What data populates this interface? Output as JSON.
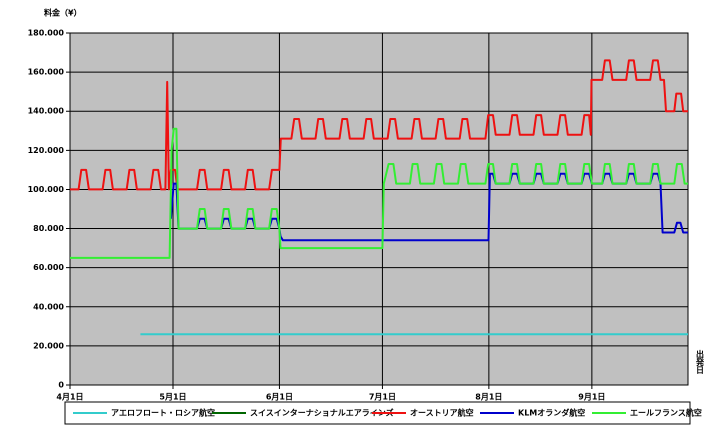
{
  "chart_data": {
    "type": "line",
    "y_label": "料金（¥）",
    "x_label": "出発日",
    "xlim": [
      0,
      180
    ],
    "xticks": [
      {
        "value": 0,
        "label": "4月1日"
      },
      {
        "value": 30,
        "label": "5月1日"
      },
      {
        "value": 61,
        "label": "6月1日"
      },
      {
        "value": 91,
        "label": "7月1日"
      },
      {
        "value": 122,
        "label": "8月1日"
      },
      {
        "value": 152,
        "label": "9月1日"
      }
    ],
    "ylim": [
      0,
      180000
    ],
    "yticks": [
      0,
      {
        "value": 20000,
        "label": "20.000"
      },
      {
        "value": 40000,
        "label": "40.000"
      },
      {
        "value": 60000,
        "label": "60.000"
      },
      {
        "value": 80000,
        "label": "80.000"
      },
      {
        "value": 100000,
        "label": "100.000"
      },
      {
        "value": 120000,
        "label": "120.000"
      },
      {
        "value": 140000,
        "label": "140.000"
      },
      {
        "value": 160000,
        "label": "160.000"
      },
      {
        "value": 180000,
        "label": "180.000"
      }
    ],
    "grid": true,
    "series": [
      {
        "name": "アエロフロート・ロシア航空",
        "color": "#33cccc",
        "x": [
          20.5,
          180
        ],
        "values": [
          26000,
          26000
        ]
      },
      {
        "name": "スイスインターナショナルエアラインズ",
        "color": "#006600",
        "x": [],
        "values": []
      },
      {
        "name": "オーストリア航空",
        "color": "#ee1111",
        "x": [
          0,
          2.5,
          3.3,
          4.7,
          5.5,
          9.5,
          10.3,
          11.7,
          12.5,
          16.5,
          17.3,
          18.7,
          19.5,
          23.5,
          24.3,
          25.7,
          26.5,
          27.8,
          28.3,
          28.8,
          29.4,
          30.6,
          31.3,
          37,
          37.8,
          39.2,
          40,
          44,
          44.8,
          46.2,
          47,
          51,
          51.8,
          53.2,
          54,
          58,
          58.8,
          61,
          61.4,
          64.5,
          65.3,
          66.7,
          67.5,
          71.5,
          72.3,
          73.7,
          74.5,
          78.5,
          79.3,
          80.7,
          81.5,
          85.5,
          86.3,
          87.7,
          88.5,
          92.5,
          93.3,
          94.7,
          95.5,
          99.5,
          100.3,
          101.7,
          102.5,
          106.5,
          107.3,
          108.7,
          109.5,
          113.5,
          114.3,
          115.7,
          116.5,
          121,
          121.8,
          123.2,
          124,
          128,
          128.8,
          130.2,
          131,
          135,
          135.8,
          137.2,
          138,
          142,
          142.8,
          144.2,
          145,
          149,
          149.8,
          151.2,
          151.7,
          151.9,
          155,
          155.8,
          157.2,
          158,
          162,
          162.8,
          164.2,
          165,
          169,
          169.8,
          171.2,
          172,
          173,
          173.6,
          176,
          176.6,
          178,
          178.6,
          180
        ],
        "values": [
          100000,
          100000,
          110000,
          110000,
          100000,
          100000,
          110000,
          110000,
          100000,
          100000,
          110000,
          110000,
          100000,
          100000,
          110000,
          110000,
          100000,
          100000,
          155000,
          100000,
          110000,
          110000,
          100000,
          100000,
          110000,
          110000,
          100000,
          100000,
          110000,
          110000,
          100000,
          100000,
          110000,
          110000,
          100000,
          100000,
          110000,
          110000,
          126000,
          126000,
          136000,
          136000,
          126000,
          126000,
          136000,
          136000,
          126000,
          126000,
          136000,
          136000,
          126000,
          126000,
          136000,
          136000,
          126000,
          126000,
          136000,
          136000,
          126000,
          126000,
          136000,
          136000,
          126000,
          126000,
          136000,
          136000,
          126000,
          126000,
          136000,
          136000,
          126000,
          126000,
          138000,
          138000,
          128000,
          128000,
          138000,
          138000,
          128000,
          128000,
          138000,
          138000,
          128000,
          128000,
          138000,
          138000,
          128000,
          128000,
          138000,
          138000,
          128000,
          156000,
          156000,
          166000,
          166000,
          156000,
          156000,
          166000,
          166000,
          156000,
          156000,
          166000,
          166000,
          156000,
          156000,
          140000,
          140000,
          149000,
          149000,
          140000,
          140000
        ]
      },
      {
        "name": "KLMオランダ航空",
        "color": "#0000cc",
        "x": [
          29.4,
          30.2,
          31,
          31.6,
          37,
          37.8,
          39.2,
          40,
          44,
          44.8,
          46.2,
          47,
          51,
          51.8,
          53.2,
          54,
          58,
          58.8,
          60.2,
          61,
          61.3,
          62,
          121.9,
          122.3,
          123.2,
          124,
          128,
          128.8,
          130.2,
          131,
          135,
          135.8,
          137.2,
          138,
          142,
          142.8,
          144.2,
          145,
          149,
          149.8,
          151.2,
          152,
          155,
          155.8,
          157.2,
          158,
          162,
          162.8,
          164.2,
          165,
          169,
          169.8,
          171.2,
          172,
          172.6,
          176,
          176.8,
          177.8,
          178.6,
          180
        ],
        "values": [
          85000,
          103000,
          103000,
          80000,
          80000,
          85000,
          85000,
          80000,
          80000,
          85000,
          85000,
          80000,
          80000,
          85000,
          85000,
          80000,
          80000,
          85000,
          85000,
          80000,
          76000,
          74000,
          74000,
          108000,
          108000,
          103000,
          103000,
          108000,
          108000,
          103000,
          103000,
          108000,
          108000,
          103000,
          103000,
          108000,
          108000,
          103000,
          103000,
          108000,
          108000,
          103000,
          103000,
          108000,
          108000,
          103000,
          103000,
          108000,
          108000,
          103000,
          103000,
          108000,
          108000,
          103000,
          78000,
          78000,
          83000,
          83000,
          78000,
          78000
        ]
      },
      {
        "name": "エールフランス航空",
        "color": "#33ee33",
        "x": [
          0,
          29,
          29.6,
          30.2,
          31,
          31.6,
          37,
          37.8,
          39.2,
          40,
          44,
          44.8,
          46.2,
          47,
          51,
          51.8,
          53.2,
          54,
          58,
          58.8,
          60.2,
          61,
          61.3,
          91,
          91.4,
          92.8,
          94.2,
          95,
          99,
          99.8,
          101.2,
          102,
          106,
          106.8,
          108.2,
          109,
          113,
          113.8,
          115.2,
          116,
          121,
          121.8,
          123.2,
          124,
          128,
          128.8,
          130.2,
          131,
          135,
          135.8,
          137.2,
          138,
          142,
          142.8,
          144.2,
          145,
          149,
          149.8,
          151.2,
          152,
          155,
          155.8,
          157.2,
          158,
          162,
          162.8,
          164.2,
          165,
          169,
          169.8,
          171.2,
          172,
          176,
          176.8,
          178.2,
          179,
          180
        ],
        "values": [
          65000,
          65000,
          120000,
          131000,
          131000,
          80000,
          80000,
          90000,
          90000,
          80000,
          80000,
          90000,
          90000,
          80000,
          80000,
          90000,
          90000,
          80000,
          80000,
          90000,
          90000,
          80000,
          70000,
          70000,
          103000,
          113000,
          113000,
          103000,
          103000,
          113000,
          113000,
          103000,
          103000,
          113000,
          113000,
          103000,
          103000,
          113000,
          113000,
          103000,
          103000,
          113000,
          113000,
          103000,
          103000,
          113000,
          113000,
          103000,
          103000,
          113000,
          113000,
          103000,
          103000,
          113000,
          113000,
          103000,
          103000,
          113000,
          113000,
          103000,
          103000,
          113000,
          113000,
          103000,
          103000,
          113000,
          113000,
          103000,
          103000,
          113000,
          113000,
          103000,
          103000,
          113000,
          113000,
          103000,
          103000
        ]
      }
    ]
  }
}
